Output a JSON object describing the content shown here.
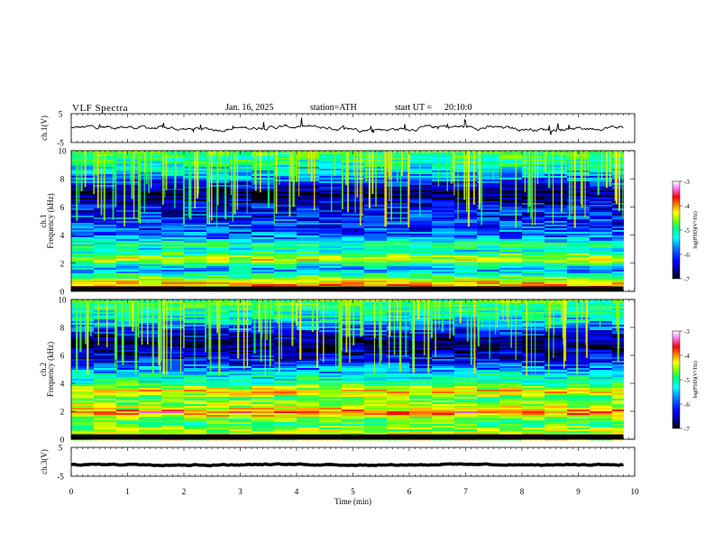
{
  "header": {
    "title": "VLF  Spectra",
    "date": "Jan. 16, 2025",
    "station": "station=ATH",
    "start_label": "start  UT  =",
    "start_value": "20:10:0"
  },
  "colors": {
    "colormap": [
      "#000000",
      "#00007f",
      "#0000ff",
      "#007fff",
      "#00ffff",
      "#00ff7f",
      "#7fff00",
      "#ffff00",
      "#ff7f00",
      "#ff0000",
      "#ff7fff",
      "#ffffff"
    ],
    "waveform": "#000000"
  },
  "chart_data": [
    {
      "type": "line",
      "panel": "ch1-waveform",
      "ylabel": "ch.1(V)",
      "ylim": [
        -5,
        5
      ],
      "yticks": [
        "5",
        "-5"
      ],
      "xlim": [
        0,
        10
      ],
      "series": [
        {
          "x_start": 0,
          "x_end": 9.8,
          "mean": 0.0,
          "amplitude": 1.2
        }
      ]
    },
    {
      "type": "heatmap",
      "panel": "ch1-spectrogram",
      "ylabel": "ch.1\nFrequency (kHz)",
      "ylim": [
        0,
        10
      ],
      "yticks": [
        "0",
        "2",
        "4",
        "6",
        "8",
        "10"
      ],
      "xlim": [
        0,
        10
      ],
      "colorbar": {
        "label": "log(PSD)(V²/Hz)",
        "ticks": [
          "-3",
          "-4",
          "-5",
          "-6",
          "-7"
        ],
        "range": [
          -7,
          -3
        ]
      },
      "background_levels": [
        {
          "freq_khz": 0.5,
          "log_psd": -4.2
        },
        {
          "freq_khz": 1.0,
          "log_psd": -4.8
        },
        {
          "freq_khz": 1.5,
          "log_psd": -5.8
        },
        {
          "freq_khz": 2.0,
          "log_psd": -5.3
        },
        {
          "freq_khz": 2.3,
          "log_psd": -4.5
        },
        {
          "freq_khz": 3.0,
          "log_psd": -5.5
        },
        {
          "freq_khz": 3.4,
          "log_psd": -5.2
        },
        {
          "freq_khz": 4.0,
          "log_psd": -6.0
        },
        {
          "freq_khz": 5.0,
          "log_psd": -6.2
        },
        {
          "freq_khz": 6.0,
          "log_psd": -6.3
        },
        {
          "freq_khz": 7.0,
          "log_psd": -6.8
        },
        {
          "freq_khz": 8.5,
          "log_psd": -5.6
        },
        {
          "freq_khz": 10.0,
          "log_psd": -5.0
        }
      ]
    },
    {
      "type": "heatmap",
      "panel": "ch2-spectrogram",
      "ylabel": "ch.2\nFrequency (kHz)",
      "ylim": [
        0,
        10
      ],
      "yticks": [
        "0",
        "2",
        "4",
        "6",
        "8",
        "10"
      ],
      "xlim": [
        0,
        10
      ],
      "colorbar": {
        "label": "log(PSD)(V²/Hz)",
        "ticks": [
          "-3",
          "-4",
          "-5",
          "-6",
          "-7"
        ],
        "range": [
          -7,
          -3
        ]
      },
      "background_levels": [
        {
          "freq_khz": 0.5,
          "log_psd": -4.6
        },
        {
          "freq_khz": 1.0,
          "log_psd": -5.0
        },
        {
          "freq_khz": 1.5,
          "log_psd": -5.0
        },
        {
          "freq_khz": 2.0,
          "log_psd": -3.9
        },
        {
          "freq_khz": 2.3,
          "log_psd": -4.6
        },
        {
          "freq_khz": 3.0,
          "log_psd": -5.0
        },
        {
          "freq_khz": 3.5,
          "log_psd": -4.3
        },
        {
          "freq_khz": 4.0,
          "log_psd": -5.2
        },
        {
          "freq_khz": 4.7,
          "log_psd": -5.5
        },
        {
          "freq_khz": 5.5,
          "log_psd": -6.2
        },
        {
          "freq_khz": 7.0,
          "log_psd": -6.8
        },
        {
          "freq_khz": 8.5,
          "log_psd": -5.6
        },
        {
          "freq_khz": 10.0,
          "log_psd": -5.0
        }
      ]
    },
    {
      "type": "line",
      "panel": "ch3-waveform",
      "ylabel": "ch.3(V)",
      "ylim": [
        -5,
        5
      ],
      "yticks": [
        "5",
        "-5"
      ],
      "xlim": [
        0,
        10
      ],
      "xlabel": "Time  (min)",
      "xticks": [
        "0",
        "1",
        "2",
        "3",
        "4",
        "5",
        "6",
        "7",
        "8",
        "9",
        "10"
      ],
      "series": [
        {
          "x_start": 0,
          "x_end": 9.8,
          "mean": -1.0,
          "amplitude": 0.3
        }
      ]
    }
  ]
}
